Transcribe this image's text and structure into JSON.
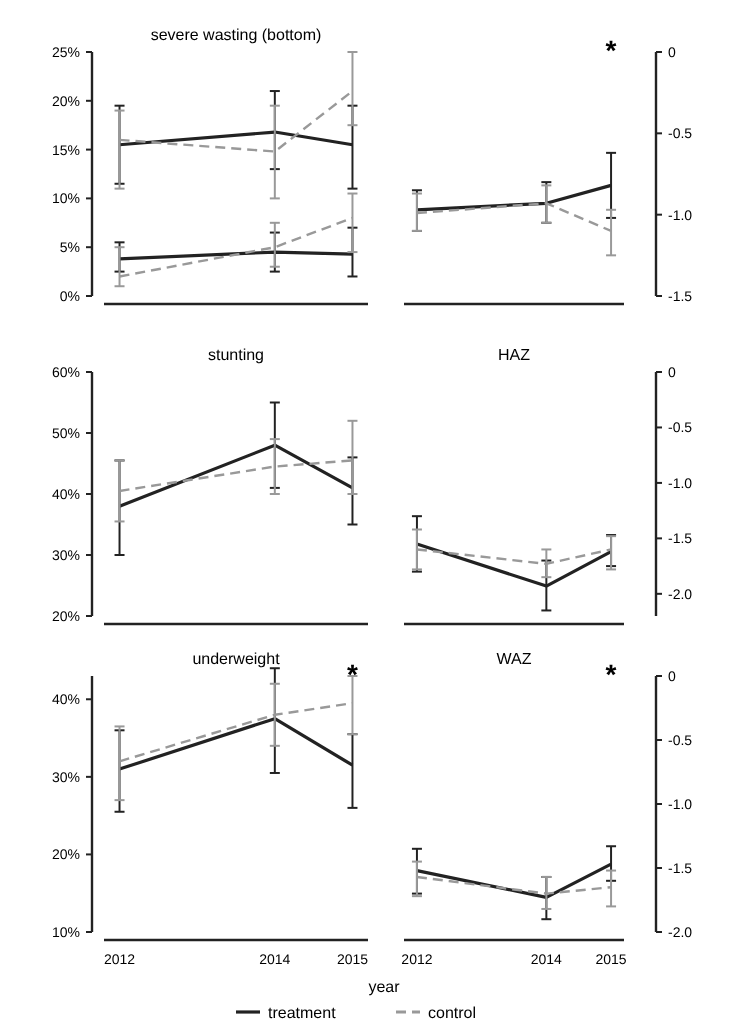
{
  "chart_data": [
    {
      "type": "line",
      "title": "severe wasting (bottom)",
      "x": [
        2012,
        2014,
        2015
      ],
      "xlim": [
        2011.8,
        2015.2
      ],
      "tick_labels": "y",
      "ylim": [
        0,
        25
      ],
      "yticks": [
        {
          "value": 0,
          "label": "0%"
        },
        {
          "value": 5,
          "label": "5%"
        },
        {
          "value": 10,
          "label": "10%"
        },
        {
          "value": 15,
          "label": "15%"
        },
        {
          "value": 20,
          "label": "20%"
        },
        {
          "value": 25,
          "label": "25%"
        }
      ],
      "marker": "none",
      "series": [
        {
          "color": "#222222",
          "line_style": "solid",
          "values": [
            15.5,
            16.8,
            15.5
          ],
          "errors": [
            [
              11.5,
              19.5
            ],
            [
              13,
              21
            ],
            [
              11,
              19.5
            ]
          ]
        },
        {
          "color": "#999999",
          "line_style": "dashed",
          "values": [
            16,
            14.8,
            21
          ],
          "errors": [
            [
              11,
              19
            ],
            [
              10,
              19.5
            ],
            [
              17.5,
              25
            ]
          ]
        },
        {
          "color": "#222222",
          "line_style": "solid",
          "values": [
            3.8,
            4.5,
            4.3
          ],
          "errors": [
            [
              2.5,
              5.5
            ],
            [
              2.5,
              6.5
            ],
            [
              2,
              7
            ]
          ]
        },
        {
          "color": "#999999",
          "line_style": "dashed",
          "values": [
            2,
            5,
            8
          ],
          "errors": [
            [
              1,
              5
            ],
            [
              3,
              7.5
            ],
            [
              4.5,
              10.5
            ]
          ]
        }
      ]
    },
    {
      "type": "line",
      "x": [
        2012,
        2014,
        2015
      ],
      "xlim": [
        2011.8,
        2015.2
      ],
      "tick_labels": "y",
      "y2lim": [
        -1.5,
        0
      ],
      "y2ticks": [
        {
          "value": 0,
          "label": "0"
        },
        {
          "value": -0.5,
          "label": "-0.5"
        },
        {
          "value": -1,
          "label": "-1.0"
        },
        {
          "value": -1.5,
          "label": "-1.5"
        }
      ],
      "marker": "none",
      "annotations": [
        "*"
      ],
      "series": [
        {
          "color": "#222222",
          "line_style": "solid",
          "axis": "y2",
          "values": [
            -0.97,
            -0.93,
            -0.82
          ],
          "errors": [
            [
              -1.1,
              -0.85
            ],
            [
              -1.05,
              -0.8
            ],
            [
              -1.02,
              -0.62
            ]
          ]
        },
        {
          "color": "#999999",
          "line_style": "dashed",
          "axis": "y2",
          "values": [
            -0.99,
            -0.93,
            -1.1
          ],
          "errors": [
            [
              -1.1,
              -0.87
            ],
            [
              -1.05,
              -0.82
            ],
            [
              -1.25,
              -0.97
            ]
          ]
        }
      ]
    },
    {
      "type": "line",
      "title": "stunting",
      "x": [
        2012,
        2014,
        2015
      ],
      "xlim": [
        2011.8,
        2015.2
      ],
      "tick_labels": "y",
      "ylim": [
        20,
        60
      ],
      "yticks": [
        {
          "value": 20,
          "label": "20%"
        },
        {
          "value": 30,
          "label": "30%"
        },
        {
          "value": 40,
          "label": "40%"
        },
        {
          "value": 50,
          "label": "50%"
        },
        {
          "value": 60,
          "label": "60%"
        }
      ],
      "marker": "none",
      "series": [
        {
          "color": "#222222",
          "line_style": "solid",
          "values": [
            38,
            48,
            41
          ],
          "errors": [
            [
              30,
              45.5
            ],
            [
              41,
              55
            ],
            [
              35,
              46
            ]
          ]
        },
        {
          "color": "#999999",
          "line_style": "dashed",
          "values": [
            40.5,
            44.5,
            45.5
          ],
          "errors": [
            [
              35.5,
              45.5
            ],
            [
              40,
              49
            ],
            [
              40,
              52
            ]
          ]
        }
      ]
    },
    {
      "type": "line",
      "title": "HAZ",
      "x": [
        2012,
        2014,
        2015
      ],
      "xlim": [
        2011.8,
        2015.2
      ],
      "tick_labels": "y",
      "y2lim": [
        -2.2,
        0
      ],
      "y2ticks": [
        {
          "value": 0,
          "label": "0"
        },
        {
          "value": -0.5,
          "label": "-0.5"
        },
        {
          "value": -1,
          "label": "-1.0"
        },
        {
          "value": -1.5,
          "label": "-1.5"
        },
        {
          "value": -2,
          "label": "-2.0"
        }
      ],
      "marker": "none",
      "series": [
        {
          "color": "#222222",
          "line_style": "solid",
          "axis": "y2",
          "values": [
            -1.55,
            -1.93,
            -1.62
          ],
          "errors": [
            [
              -1.8,
              -1.3
            ],
            [
              -2.15,
              -1.7
            ],
            [
              -1.75,
              -1.47
            ]
          ]
        },
        {
          "color": "#999999",
          "line_style": "dashed",
          "axis": "y2",
          "values": [
            -1.6,
            -1.73,
            -1.6
          ],
          "errors": [
            [
              -1.78,
              -1.42
            ],
            [
              -1.85,
              -1.6
            ],
            [
              -1.78,
              -1.48
            ]
          ]
        }
      ]
    },
    {
      "type": "line",
      "title": "underweight",
      "x": [
        2012,
        2014,
        2015
      ],
      "xlim": [
        2011.8,
        2015.2
      ],
      "xticks": [
        2012,
        2014,
        2015
      ],
      "ylim": [
        10,
        43
      ],
      "yticks": [
        {
          "value": 10,
          "label": "10%"
        },
        {
          "value": 20,
          "label": "20%"
        },
        {
          "value": 30,
          "label": "30%"
        },
        {
          "value": 40,
          "label": "40%"
        }
      ],
      "marker": "none",
      "annotations": [
        "*"
      ],
      "xlabel": "year",
      "series": [
        {
          "color": "#222222",
          "line_style": "solid",
          "values": [
            31,
            37.5,
            31.5
          ],
          "errors": [
            [
              25.5,
              36
            ],
            [
              30.5,
              44
            ],
            [
              26,
              35.5
            ]
          ]
        },
        {
          "color": "#999999",
          "line_style": "dashed",
          "values": [
            32,
            38,
            39.5
          ],
          "errors": [
            [
              27,
              36.5
            ],
            [
              34,
              42
            ],
            [
              35.5,
              43
            ]
          ]
        }
      ]
    },
    {
      "type": "line",
      "title": "WAZ",
      "x": [
        2012,
        2014,
        2015
      ],
      "xlim": [
        2011.8,
        2015.2
      ],
      "xticks": [
        2012,
        2014,
        2015
      ],
      "y2lim": [
        -2,
        0
      ],
      "y2ticks": [
        {
          "value": 0,
          "label": "0"
        },
        {
          "value": -0.5,
          "label": "-0.5"
        },
        {
          "value": -1,
          "label": "-1.0"
        },
        {
          "value": -1.5,
          "label": "-1.5"
        },
        {
          "value": -2,
          "label": "-2.0"
        }
      ],
      "marker": "none",
      "annotations": [
        "*"
      ],
      "legend": "bottom",
      "series": [
        {
          "name": "treatment",
          "color": "#222222",
          "line_style": "solid",
          "axis": "y2",
          "values": [
            -1.52,
            -1.73,
            -1.47
          ],
          "errors": [
            [
              -1.7,
              -1.35
            ],
            [
              -1.9,
              -1.57
            ],
            [
              -1.6,
              -1.33
            ]
          ]
        },
        {
          "name": "control",
          "color": "#999999",
          "line_style": "dashed",
          "axis": "y2",
          "values": [
            -1.57,
            -1.7,
            -1.65
          ],
          "errors": [
            [
              -1.72,
              -1.45
            ],
            [
              -1.82,
              -1.57
            ],
            [
              -1.8,
              -1.52
            ]
          ]
        }
      ]
    }
  ]
}
